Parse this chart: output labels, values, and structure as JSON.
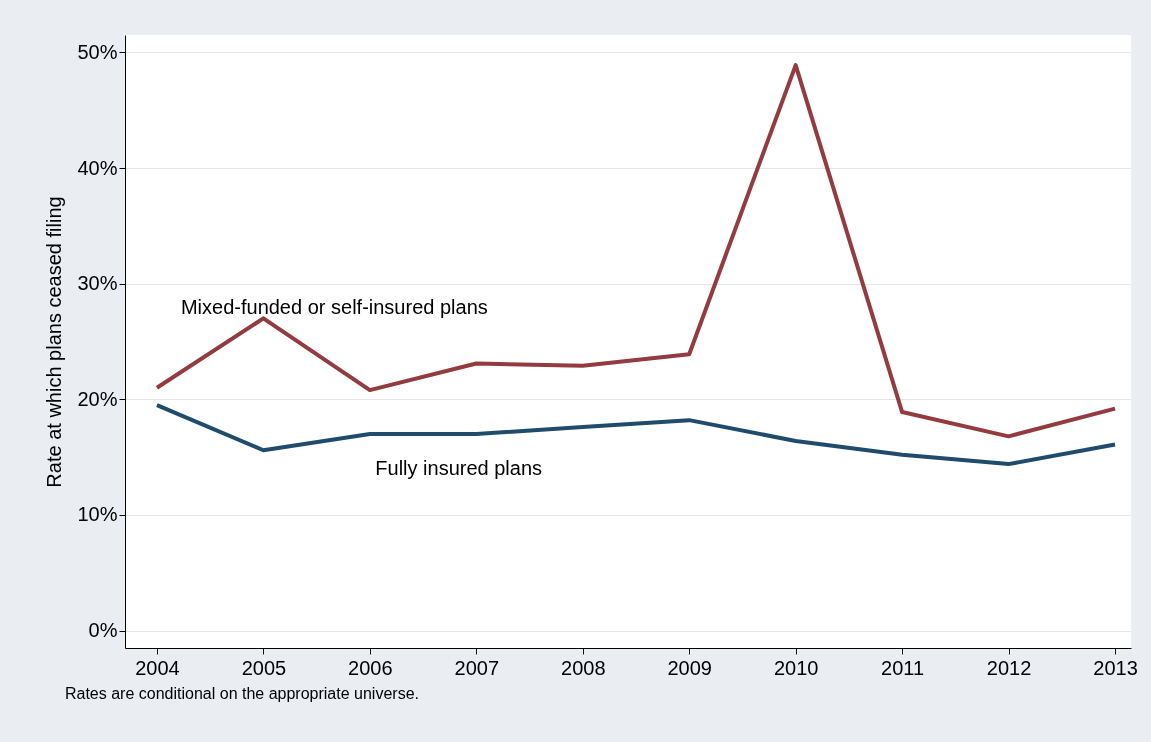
{
  "chart_data": {
    "type": "line",
    "ylabel": "Rate at which plans ceased filing",
    "x": [
      2004,
      2005,
      2006,
      2007,
      2008,
      2009,
      2010,
      2011,
      2012,
      2013
    ],
    "series": [
      {
        "name": "Mixed-funded or self-insured plans",
        "color": "#943b40",
        "values": [
          21.0,
          27.0,
          20.8,
          23.1,
          22.9,
          23.9,
          48.9,
          18.9,
          16.8,
          19.2
        ]
      },
      {
        "name": "Fully insured plans",
        "color": "#1f4b6c",
        "values": [
          19.5,
          15.6,
          17.0,
          17.0,
          17.6,
          18.2,
          16.4,
          15.2,
          14.4,
          16.1
        ]
      }
    ],
    "xlim": [
      2003.7,
      2013.15
    ],
    "xticks": [
      2004,
      2005,
      2006,
      2007,
      2008,
      2009,
      2010,
      2011,
      2012,
      2013
    ],
    "ylim": [
      -1.5,
      51.5
    ],
    "yticks": [
      {
        "value": 0,
        "label": "0%"
      },
      {
        "value": 10,
        "label": "10%"
      },
      {
        "value": 20,
        "label": "20%"
      },
      {
        "value": 30,
        "label": "30%"
      },
      {
        "value": 40,
        "label": "40%"
      },
      {
        "value": 50,
        "label": "50%"
      }
    ],
    "grid": "y",
    "marker": "none",
    "line_style": "solid",
    "annotations": [
      "Rates are conditional on the appropriate universe."
    ]
  }
}
